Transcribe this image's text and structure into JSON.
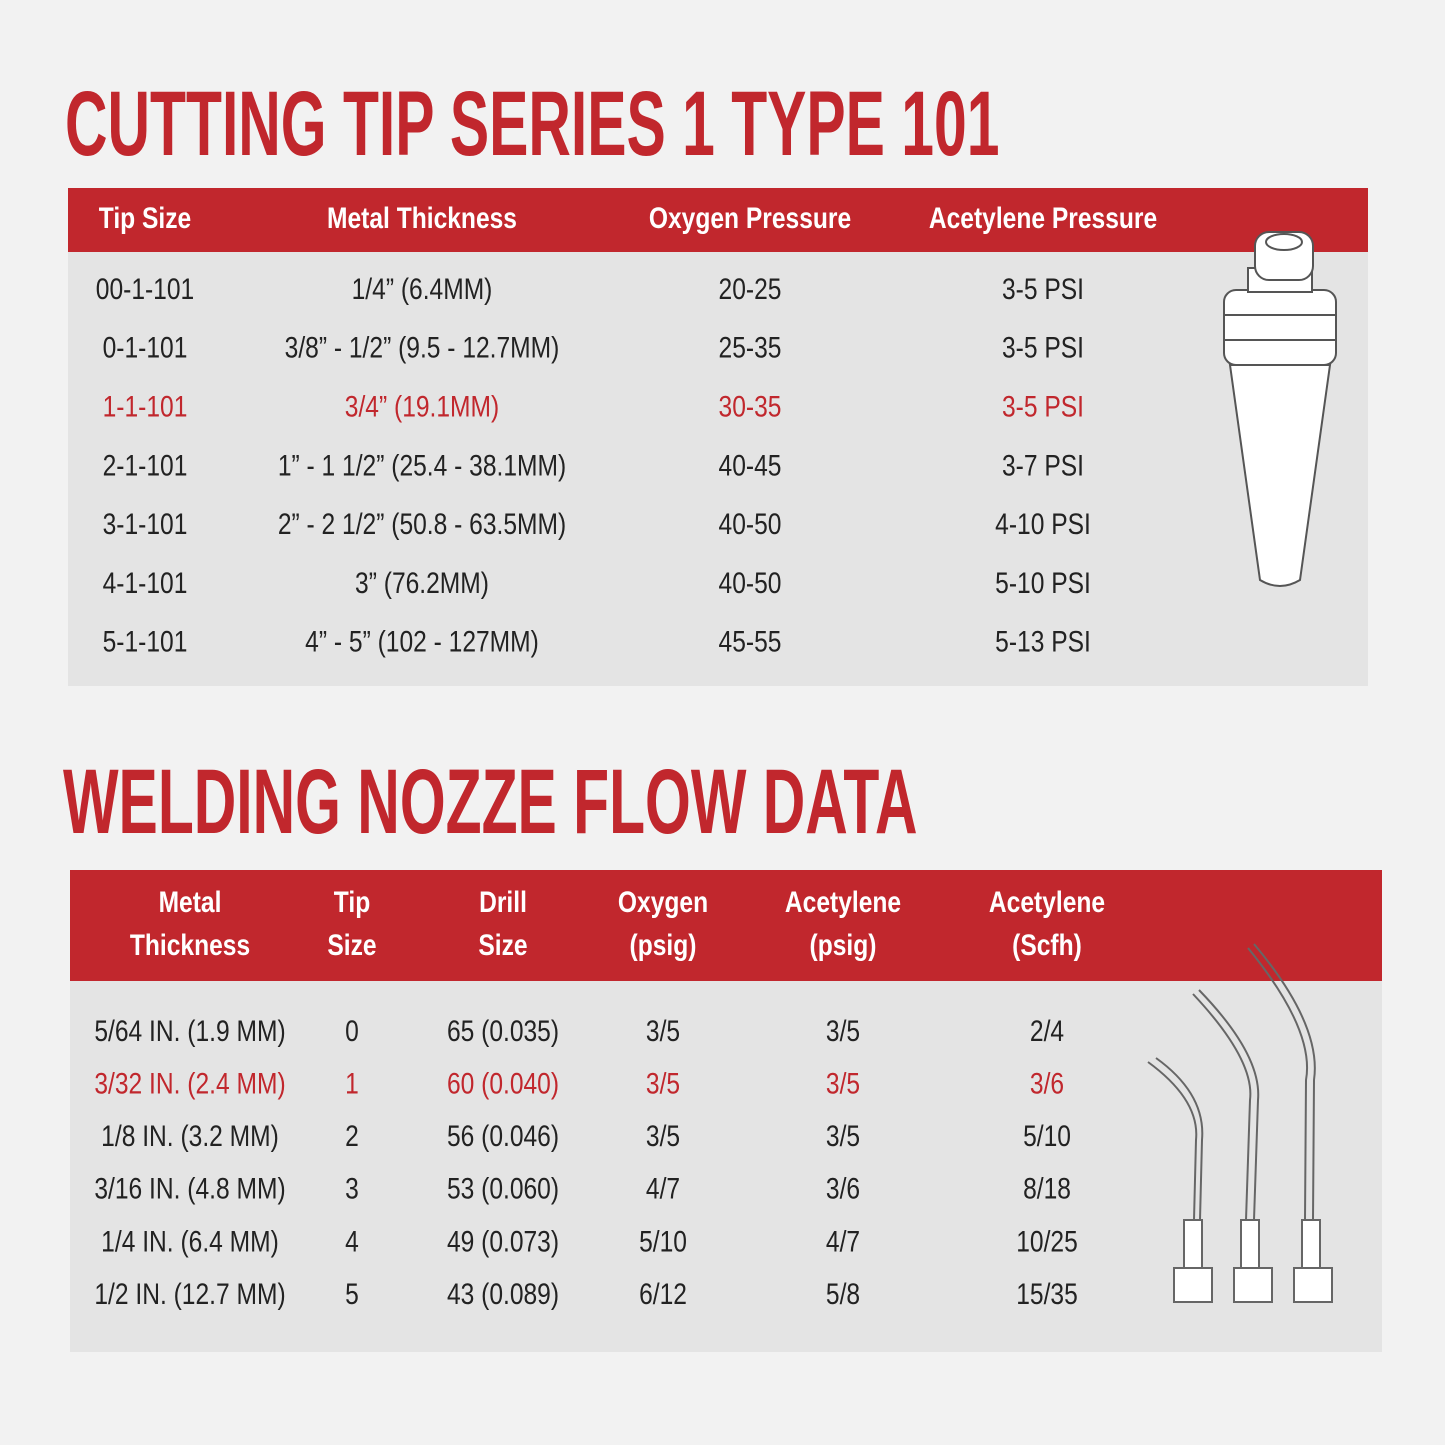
{
  "sections": [
    {
      "title": "CUTTING TIP SERIES 1 TYPE 101",
      "table": {
        "header": [
          [
            "Tip Size"
          ],
          [
            "Metal Thickness"
          ],
          [
            "Oxygen Pressure"
          ],
          [
            "Acetylene Pressure"
          ]
        ],
        "rows": [
          [
            "00-1-101",
            "1/4” (6.4MM)",
            "20-25",
            "3-5 PSI"
          ],
          [
            "0-1-101",
            "3/8” - 1/2” (9.5 - 12.7MM)",
            "25-35",
            "3-5 PSI"
          ],
          [
            "1-1-101",
            "3/4” (19.1MM)",
            "30-35",
            "3-5 PSI"
          ],
          [
            "2-1-101",
            "1” - 1 1/2” (25.4 - 38.1MM)",
            "40-45",
            "3-7 PSI"
          ],
          [
            "3-1-101",
            "2” - 2 1/2” (50.8 - 63.5MM)",
            "40-50",
            "4-10 PSI"
          ],
          [
            "4-1-101",
            "3” (76.2MM)",
            "40-50",
            "5-10 PSI"
          ],
          [
            "5-1-101",
            "4” - 5” (102 - 127MM)",
            "45-55",
            "5-13 PSI"
          ]
        ]
      }
    },
    {
      "title": "WELDING NOZZE FLOW DATA",
      "table": {
        "header": [
          [
            "Metal",
            "Thickness"
          ],
          [
            "Tip",
            "Size"
          ],
          [
            "Drill",
            "Size"
          ],
          [
            "Oxygen",
            "(psig)"
          ],
          [
            "Acetylene",
            "(psig)"
          ],
          [
            "Acetylene",
            "(Scfh)"
          ]
        ],
        "rows": [
          [
            "5/64 IN. (1.9 MM)",
            "0",
            "65 (0.035)",
            "3/5",
            "3/5",
            "2/4"
          ],
          [
            "3/32 IN. (2.4 MM)",
            "1",
            "60 (0.040)",
            "3/5",
            "3/5",
            "3/6"
          ],
          [
            "1/8 IN. (3.2 MM)",
            "2",
            "56 (0.046)",
            "3/5",
            "3/5",
            "5/10"
          ],
          [
            "3/16 IN. (4.8 MM)",
            "3",
            "53 (0.060)",
            "4/7",
            "3/6",
            "8/18"
          ],
          [
            "1/4 IN. (6.4 MM)",
            "4",
            "49 (0.073)",
            "5/10",
            "4/7",
            "10/25"
          ],
          [
            "1/2 IN. (12.7 MM)",
            "5",
            "43 (0.089)",
            "6/12",
            "5/8",
            "15/35"
          ]
        ]
      }
    }
  ]
}
